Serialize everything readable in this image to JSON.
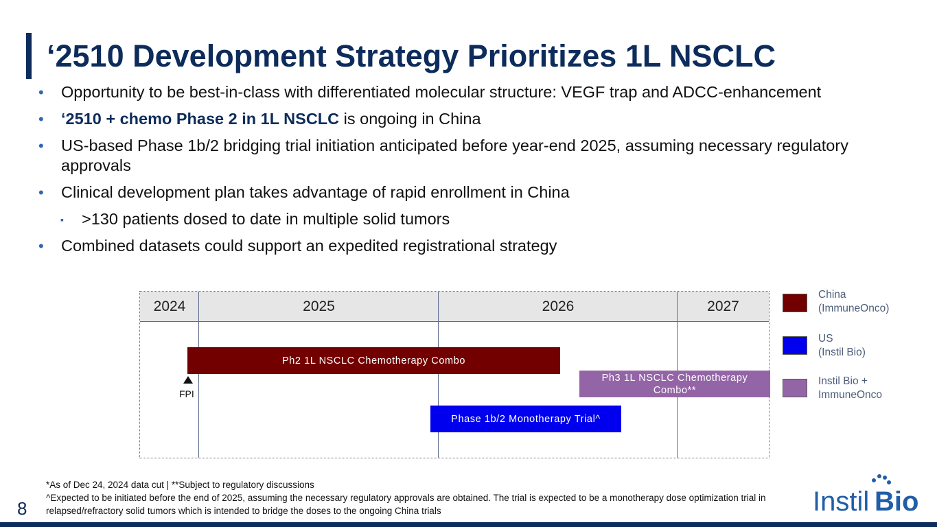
{
  "slide": {
    "title": "‘2510 Development Strategy Prioritizes 1L NSCLC",
    "page_number": "8"
  },
  "bullets": {
    "b1": "Opportunity to be best-in-class with differentiated molecular structure: VEGF trap and ADCC-enhancement",
    "b2_bold": "‘2510 + chemo Phase 2 in 1L NSCLC",
    "b2_rest": " is ongoing in China",
    "b3": "US-based Phase 1b/2 bridging trial initiation anticipated before year-end 2025, assuming necessary regulatory approvals",
    "b4": "Clinical development plan takes advantage of rapid enrollment in China",
    "b4_sub": ">130 patients dosed to date in multiple solid tumors",
    "b5": "Combined datasets could support an expedited registrational strategy",
    "bullet_glyph": "•",
    "sub_bullet_glyph": "▪"
  },
  "timeline": {
    "years": [
      "2024",
      "2025",
      "2026",
      "2027"
    ],
    "bars": [
      {
        "label": "Ph2 1L NSCLC Chemotherapy Combo",
        "sponsor": "China (ImmuneOnco)",
        "color": "#720000"
      },
      {
        "label": "Ph3 1L NSCLC Chemotherapy Combo**",
        "sponsor": "Instil Bio + ImmuneOnco",
        "color": "#9465a6"
      },
      {
        "label": "Phase 1b/2 Monotherapy Trial^",
        "sponsor": "US (Instil Bio)",
        "color": "#0000ee"
      }
    ],
    "milestone": {
      "label": "FPI",
      "icon": "triangle-up-icon"
    }
  },
  "legend": [
    {
      "label": "China\n(ImmuneOnco)",
      "color": "#720000"
    },
    {
      "label": "US\n(Instil Bio)",
      "color": "#0000ee"
    },
    {
      "label": "Instil Bio +\nImmuneOnco",
      "color": "#9465a6"
    }
  ],
  "footnotes": {
    "line1": "*As of Dec 24, 2024 data cut  |  **Subject to regulatory discussions",
    "line2": "^Expected to be initiated before the end of 2025, assuming the necessary regulatory approvals are obtained. The trial is expected to be a monotherapy dose optimization trial in relapsed/refractory solid tumors which is intended to bridge the doses to the ongoing China trials"
  },
  "logo": {
    "text_instil": "Instil",
    "text_bio": "Bio"
  },
  "colors": {
    "navy": "#0d2c5c",
    "bullet_blue": "#2f66b3",
    "logo_blue": "#1f5ea8"
  }
}
